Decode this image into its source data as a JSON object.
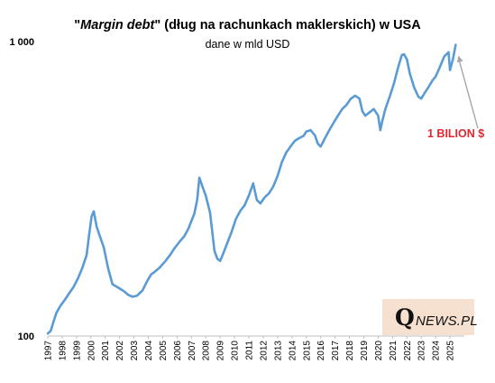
{
  "title": {
    "quote_open": "\"",
    "italic_part": "Margin debt",
    "quote_close": "\"",
    "rest": " (dług na rachunkach maklerskich) w USA"
  },
  "subtitle": "dane w mld USD",
  "logo": {
    "initial": "Q",
    "rest": "NEWS.PL"
  },
  "colors": {
    "line": "#5b9bd5",
    "annotation": "#e3262e",
    "arrow": "#a6a6a6",
    "logo_bg": "#f6e0cf"
  },
  "chart_data": {
    "type": "line",
    "title": "\"Margin debt\" (dług na rachunkach maklerskich) w USA",
    "subtitle": "dane w mld USD",
    "y_scale": "log",
    "ylim": [
      100,
      1000
    ],
    "yticks": [
      {
        "value": 100,
        "label": "100"
      },
      {
        "value": 1000,
        "label": "1 000"
      }
    ],
    "xlim": [
      1997,
      2026
    ],
    "xticks": [
      "1997",
      "1998",
      "1999",
      "2000",
      "2001",
      "2002",
      "2003",
      "2004",
      "2005",
      "2006",
      "2007",
      "2008",
      "2009",
      "2010",
      "2011",
      "2012",
      "2013",
      "2014",
      "2015",
      "2016",
      "2017",
      "2018",
      "2019",
      "2020",
      "2021",
      "2022",
      "2023",
      "2024",
      "2025"
    ],
    "grid": false,
    "legend": "none",
    "series": [
      {
        "x": [
          1997.0,
          1997.2,
          1997.4,
          1997.6,
          1997.9,
          1998.2,
          1998.5,
          1998.8,
          1999.1,
          1999.4,
          1999.7,
          1999.9,
          2000.05,
          2000.2,
          2000.4,
          2000.6,
          2000.9,
          2001.2,
          2001.5,
          2001.9,
          2002.3,
          2002.6,
          2002.9,
          2003.2,
          2003.6,
          2003.9,
          2004.2,
          2004.5,
          2004.8,
          2005.2,
          2005.5,
          2005.8,
          2006.2,
          2006.5,
          2006.8,
          2007.0,
          2007.2,
          2007.4,
          2007.55,
          2007.8,
          2008.0,
          2008.3,
          2008.6,
          2008.8,
          2009.0,
          2009.2,
          2009.5,
          2009.8,
          2010.1,
          2010.4,
          2010.7,
          2011.0,
          2011.3,
          2011.55,
          2011.8,
          2012.1,
          2012.4,
          2012.7,
          2013.0,
          2013.3,
          2013.6,
          2013.9,
          2014.2,
          2014.5,
          2014.8,
          2015.0,
          2015.3,
          2015.6,
          2015.8,
          2016.0,
          2016.3,
          2016.6,
          2016.9,
          2017.2,
          2017.5,
          2017.8,
          2018.1,
          2018.4,
          2018.7,
          2018.9,
          2019.1,
          2019.4,
          2019.7,
          2020.0,
          2020.15,
          2020.3,
          2020.5,
          2020.8,
          2021.1,
          2021.4,
          2021.65,
          2021.8,
          2022.0,
          2022.2,
          2022.5,
          2022.8,
          2023.0,
          2023.2,
          2023.5,
          2023.8,
          2024.0,
          2024.3,
          2024.6,
          2024.9,
          2025.0,
          2025.2,
          2025.4
        ],
        "y": [
          102,
          104,
          112,
          120,
          127,
          133,
          140,
          147,
          157,
          170,
          188,
          225,
          255,
          265,
          235,
          220,
          200,
          170,
          150,
          146,
          142,
          138,
          136,
          137,
          143,
          153,
          162,
          166,
          171,
          180,
          188,
          198,
          210,
          218,
          232,
          246,
          260,
          290,
          345,
          318,
          300,
          262,
          195,
          183,
          180,
          190,
          207,
          226,
          250,
          266,
          278,
          300,
          330,
          290,
          282,
          296,
          305,
          322,
          350,
          390,
          420,
          440,
          460,
          470,
          478,
          495,
          500,
          480,
          450,
          440,
          470,
          500,
          530,
          560,
          590,
          610,
          640,
          655,
          640,
          580,
          560,
          575,
          590,
          560,
          500,
          540,
          590,
          650,
          720,
          820,
          900,
          905,
          870,
          780,
          700,
          650,
          640,
          665,
          700,
          740,
          760,
          820,
          890,
          920,
          800,
          870,
          975
        ]
      }
    ],
    "annotations": [
      {
        "text": "1 BILION $",
        "points_to": {
          "x": 2025.4,
          "y": 975
        }
      }
    ]
  }
}
